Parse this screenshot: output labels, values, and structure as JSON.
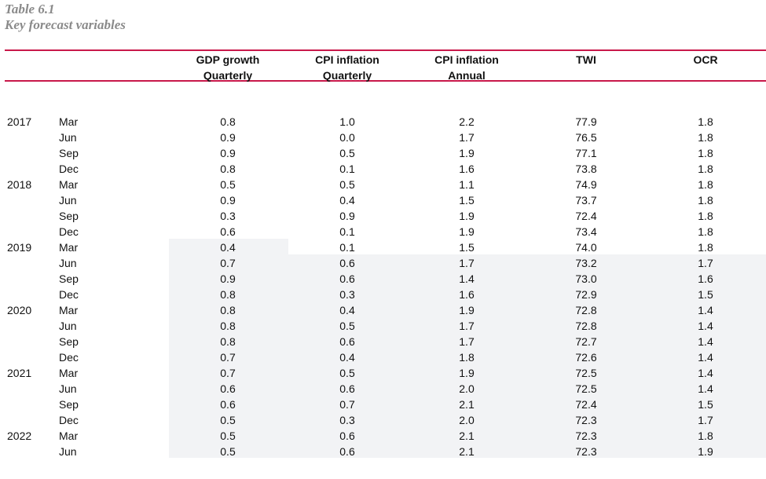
{
  "title": {
    "line1": "Table 6.1",
    "line2": "Key forecast variables"
  },
  "columns": [
    {
      "line1": "GDP growth",
      "line2": "Quarterly"
    },
    {
      "line1": "CPI inflation",
      "line2": "Quarterly"
    },
    {
      "line1": "CPI inflation",
      "line2": "Annual"
    },
    {
      "line1": "TWI",
      "line2": ""
    },
    {
      "line1": "OCR",
      "line2": ""
    }
  ],
  "rows": [
    {
      "year": "2017",
      "month": "Mar",
      "values": [
        "0.8",
        "1.0",
        "2.2",
        "77.9",
        "1.8"
      ]
    },
    {
      "year": "",
      "month": "Jun",
      "values": [
        "0.9",
        "0.0",
        "1.7",
        "76.5",
        "1.8"
      ]
    },
    {
      "year": "",
      "month": "Sep",
      "values": [
        "0.9",
        "0.5",
        "1.9",
        "77.1",
        "1.8"
      ]
    },
    {
      "year": "",
      "month": "Dec",
      "values": [
        "0.8",
        "0.1",
        "1.6",
        "73.8",
        "1.8"
      ]
    },
    {
      "year": "2018",
      "month": "Mar",
      "values": [
        "0.5",
        "0.5",
        "1.1",
        "74.9",
        "1.8"
      ]
    },
    {
      "year": "",
      "month": "Jun",
      "values": [
        "0.9",
        "0.4",
        "1.5",
        "73.7",
        "1.8"
      ]
    },
    {
      "year": "",
      "month": "Sep",
      "values": [
        "0.3",
        "0.9",
        "1.9",
        "72.4",
        "1.8"
      ]
    },
    {
      "year": "",
      "month": "Dec",
      "values": [
        "0.6",
        "0.1",
        "1.9",
        "73.4",
        "1.8"
      ]
    },
    {
      "year": "2019",
      "month": "Mar",
      "values": [
        "0.4",
        "0.1",
        "1.5",
        "74.0",
        "1.8"
      ]
    },
    {
      "year": "",
      "month": "Jun",
      "values": [
        "0.7",
        "0.6",
        "1.7",
        "73.2",
        "1.7"
      ]
    },
    {
      "year": "",
      "month": "Sep",
      "values": [
        "0.9",
        "0.6",
        "1.4",
        "73.0",
        "1.6"
      ]
    },
    {
      "year": "",
      "month": "Dec",
      "values": [
        "0.8",
        "0.3",
        "1.6",
        "72.9",
        "1.5"
      ]
    },
    {
      "year": "2020",
      "month": "Mar",
      "values": [
        "0.8",
        "0.4",
        "1.9",
        "72.8",
        "1.4"
      ]
    },
    {
      "year": "",
      "month": "Jun",
      "values": [
        "0.8",
        "0.5",
        "1.7",
        "72.8",
        "1.4"
      ]
    },
    {
      "year": "",
      "month": "Sep",
      "values": [
        "0.8",
        "0.6",
        "1.7",
        "72.7",
        "1.4"
      ]
    },
    {
      "year": "",
      "month": "Dec",
      "values": [
        "0.7",
        "0.4",
        "1.8",
        "72.6",
        "1.4"
      ]
    },
    {
      "year": "2021",
      "month": "Mar",
      "values": [
        "0.7",
        "0.5",
        "1.9",
        "72.5",
        "1.4"
      ]
    },
    {
      "year": "",
      "month": "Jun",
      "values": [
        "0.6",
        "0.6",
        "2.0",
        "72.5",
        "1.4"
      ]
    },
    {
      "year": "",
      "month": "Sep",
      "values": [
        "0.6",
        "0.7",
        "2.1",
        "72.4",
        "1.5"
      ]
    },
    {
      "year": "",
      "month": "Dec",
      "values": [
        "0.5",
        "0.3",
        "2.0",
        "72.3",
        "1.7"
      ]
    },
    {
      "year": "2022",
      "month": "Mar",
      "values": [
        "0.5",
        "0.6",
        "2.1",
        "72.3",
        "1.8"
      ]
    },
    {
      "year": "",
      "month": "Jun",
      "values": [
        "0.5",
        "0.6",
        "2.1",
        "72.3",
        "1.9"
      ]
    }
  ],
  "colors": {
    "accent": "#c8184a",
    "caption": "#8a8a8a",
    "shade": "#f2f3f5"
  }
}
